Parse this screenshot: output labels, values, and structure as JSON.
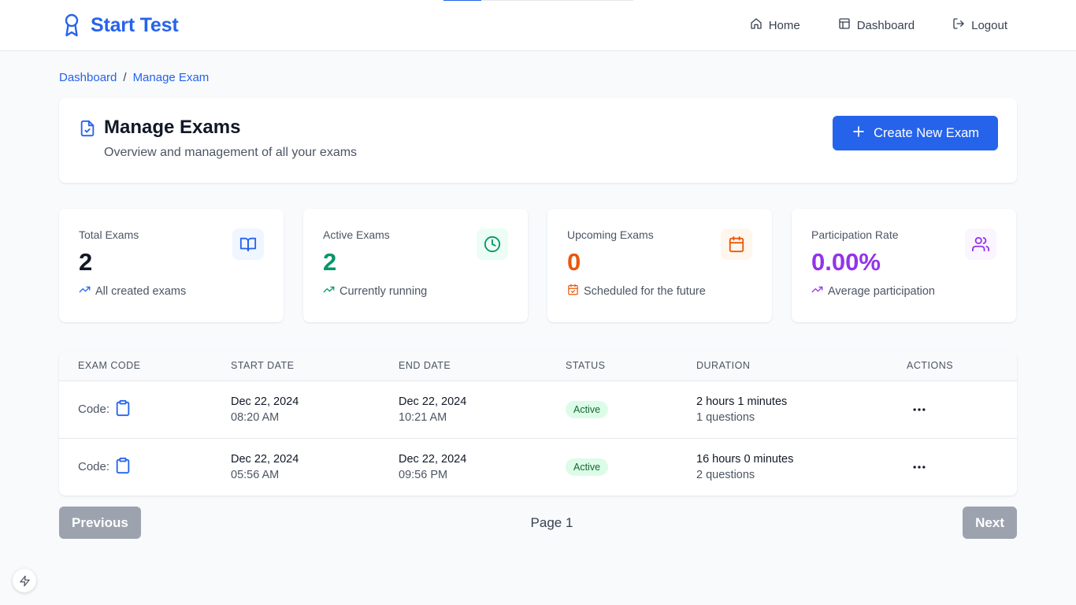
{
  "brand": {
    "title": "Start Test"
  },
  "nav": {
    "home": "Home",
    "dashboard": "Dashboard",
    "logout": "Logout"
  },
  "top_progress": {
    "percent": 20
  },
  "breadcrumb": {
    "items": [
      "Dashboard",
      "Manage Exam"
    ],
    "separator": "/"
  },
  "header": {
    "title": "Manage Exams",
    "subtitle": "Overview and management of all your exams",
    "create_button": "Create New Exam"
  },
  "stats": [
    {
      "label": "Total Exams",
      "value": "2",
      "footer": "All created exams",
      "icon": "book-open-icon",
      "color": "#111827",
      "icon_color": "#2563eb",
      "icon_bg": "#eff6ff"
    },
    {
      "label": "Active Exams",
      "value": "2",
      "footer": "Currently running",
      "icon": "clock-icon",
      "color": "#059669",
      "icon_color": "#059669",
      "icon_bg": "#ecfdf5"
    },
    {
      "label": "Upcoming Exams",
      "value": "0",
      "footer": "Scheduled for the future",
      "icon": "calendar-icon",
      "color": "#ea580c",
      "icon_color": "#ea580c",
      "icon_bg": "#fff7ed"
    },
    {
      "label": "Participation Rate",
      "value": "0.00%",
      "footer": "Average participation",
      "icon": "users-icon",
      "color": "#9333ea",
      "icon_color": "#9333ea",
      "icon_bg": "#faf5ff"
    }
  ],
  "table": {
    "columns": [
      "EXAM CODE",
      "START DATE",
      "END DATE",
      "STATUS",
      "DURATION",
      "ACTIONS"
    ],
    "rows": [
      {
        "code_label": "Code:",
        "start_date": "Dec 22, 2024",
        "start_time": "08:20 AM",
        "end_date": "Dec 22, 2024",
        "end_time": "10:21 AM",
        "status": "Active",
        "duration": "2 hours 1 minutes",
        "questions": "1 questions"
      },
      {
        "code_label": "Code:",
        "start_date": "Dec 22, 2024",
        "start_time": "05:56 AM",
        "end_date": "Dec 22, 2024",
        "end_time": "09:56 PM",
        "status": "Active",
        "duration": "16 hours 0 minutes",
        "questions": "2 questions"
      }
    ]
  },
  "pagination": {
    "previous": "Previous",
    "page": "Page 1",
    "next": "Next"
  },
  "colors": {
    "primary": "#2563eb",
    "active_badge_bg": "#dcfce7",
    "active_badge_text": "#166534",
    "disabled_button": "#9ca3af"
  }
}
